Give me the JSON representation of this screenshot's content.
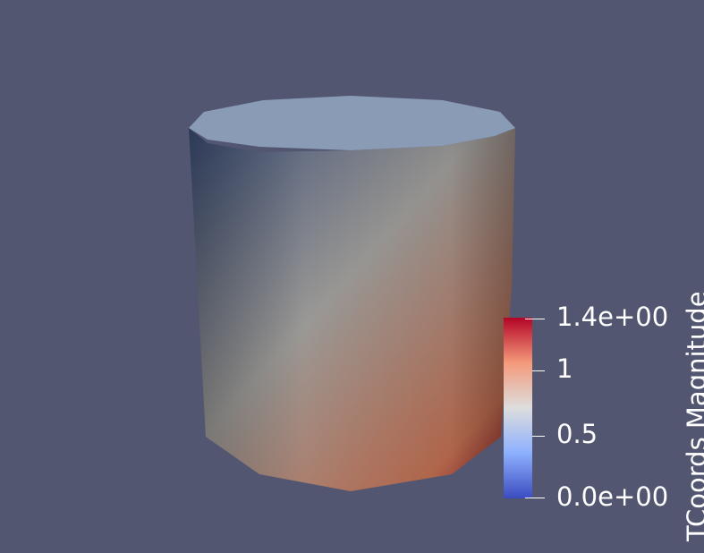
{
  "viewport": {
    "background": "#525670"
  },
  "cylinder": {
    "top_face_color": "#8a9bb6",
    "low_color": "#3a4c74",
    "mid_color": "#9a9895",
    "high_color": "#b86a4e",
    "max_color": "#8c1220"
  },
  "scalar_bar": {
    "title": "TCoords Magnitude",
    "range": [
      0.0,
      1.4
    ],
    "colormap": [
      "#3b4cc0",
      "#8db0fe",
      "#dddddd",
      "#f49a7b",
      "#b40426"
    ],
    "ticks": [
      {
        "label": "1.4e+00",
        "value": 1.4
      },
      {
        "label": "1",
        "value": 1.0
      },
      {
        "label": "0.5",
        "value": 0.5
      },
      {
        "label": "0.0e+00",
        "value": 0.0
      }
    ]
  }
}
